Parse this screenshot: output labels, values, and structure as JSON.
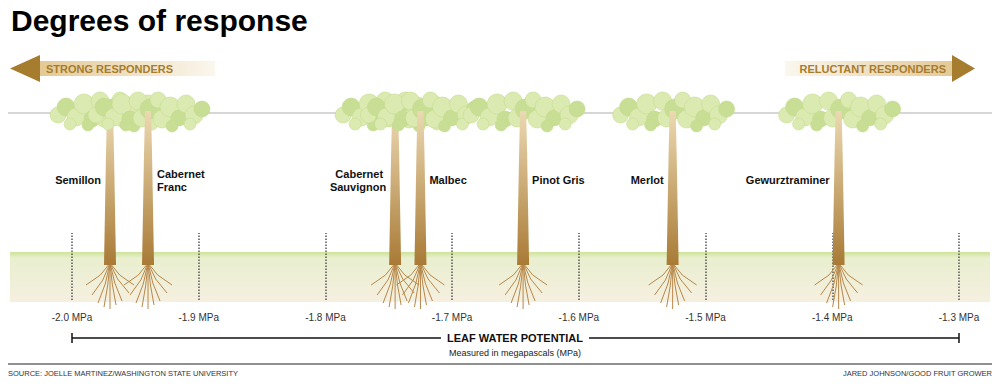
{
  "chart_data": {
    "type": "scatter",
    "title": "Degrees of response",
    "categories": [
      "Semillon",
      "Cabernet Franc",
      "Cabernet Sauvignon",
      "Malbec",
      "Pinot Gris",
      "Merlot",
      "Gewurztraminer"
    ],
    "values": [
      -1.97,
      -1.94,
      -1.745,
      -1.725,
      -1.644,
      -1.526,
      -1.395
    ],
    "color": "#a87a35",
    "xlim": [
      -2.0,
      -1.3
    ],
    "xticks": [
      {
        "value": -2.0,
        "label": "-2.0 MPa"
      },
      {
        "value": -1.9,
        "label": "-1.9 MPa"
      },
      {
        "value": -1.8,
        "label": "-1.8 MPa"
      },
      {
        "value": -1.7,
        "label": "-1.7 MPa"
      },
      {
        "value": -1.6,
        "label": "-1.6 MPa"
      },
      {
        "value": -1.5,
        "label": "-1.5 MPa"
      },
      {
        "value": -1.4,
        "label": "-1.4 MPa"
      },
      {
        "value": -1.3,
        "label": "-1.3 MPa"
      }
    ],
    "x_axis_label": "LEAF WATER POTENTIAL",
    "x_axis_sublabel": "Measured in megapascals (MPa)",
    "annotations": [
      "STRONG RESPONDERS",
      "RELUCTANT RESPONDERS"
    ],
    "source": "SOURCE: JOELLE MARTINEZ/WASHINGTON STATE UNIVERSITY",
    "credit": "JARED JOHNSON/GOOD FRUIT GROWER",
    "grid": false,
    "tick_labels": "x"
  }
}
